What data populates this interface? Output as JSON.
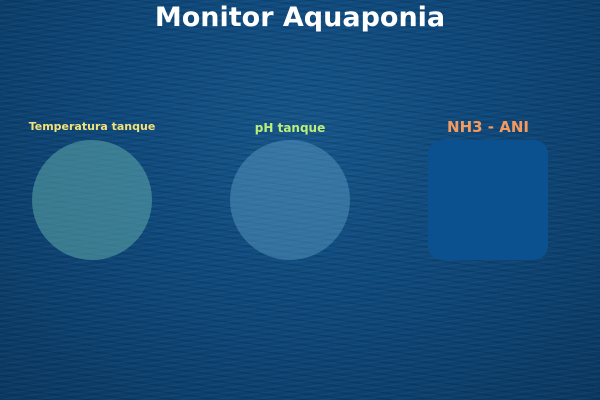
{
  "header": {
    "title": "Monitor Aquaponia"
  },
  "widgets": {
    "temperature": {
      "label": "Temperatura tanque",
      "label_color": "#f2e27a"
    },
    "ph": {
      "label": "pH tanque",
      "label_color": "#b8f07a"
    },
    "nh3": {
      "label": "NH3 - ANI",
      "label_color": "#f59a5e"
    }
  },
  "colors": {
    "background": "#0f4a7d",
    "title_text": "#ffffff",
    "nh3_panel": "#0b5190"
  }
}
